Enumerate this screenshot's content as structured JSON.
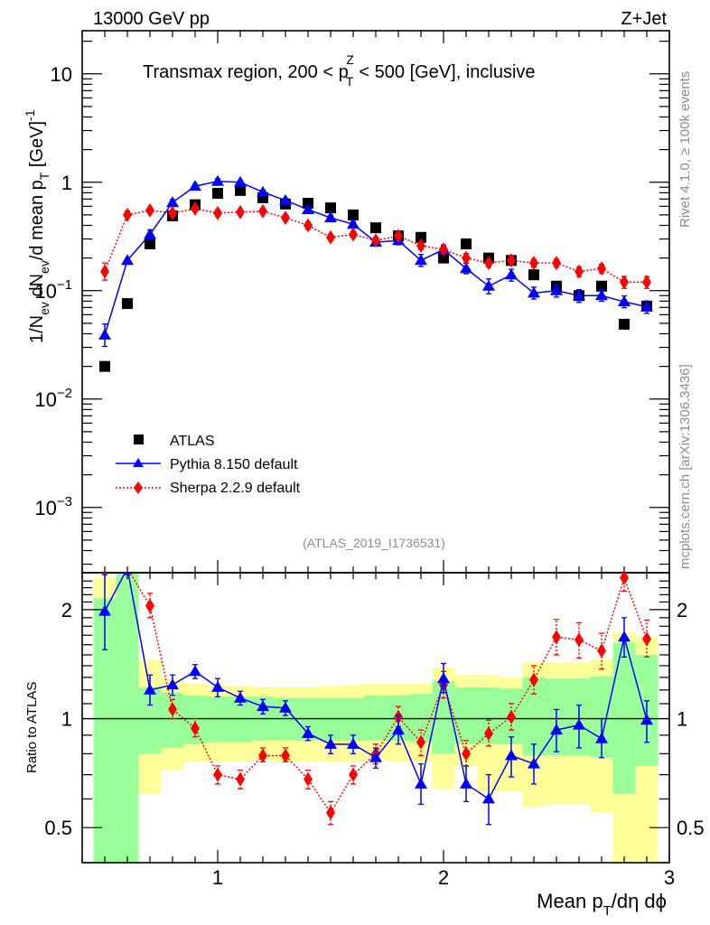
{
  "chart_data": {
    "type": "scatter",
    "top_left_label": "13000 GeV pp",
    "top_right_label": "Z+Jet",
    "title": "Transmax region, 200 < p_T^Z < 500 [GeV], inclusive",
    "title_parts": {
      "pre": "Transmax region, 200 < p",
      "sub": "T",
      "sup": "Z",
      "post": " < 500 [GeV], inclusive"
    },
    "ylabel": "1/N_ev dN_ev/d mean p_T [GeV]^-1",
    "ylabel_parts": {
      "a": "1/N",
      "a_sub": "ev",
      "b": " dN",
      "b_sub": "ev",
      "c": "/d mean p",
      "c_sub": "T",
      "d": " [GeV]",
      "d_sup": "-1"
    },
    "ratio_ylabel": "Ratio to ATLAS",
    "xlabel": "Mean p_T/dη dϕ",
    "xlabel_parts": {
      "a": "Mean p",
      "a_sub": "T",
      "b": "/dη dϕ"
    },
    "xlim": [
      0.4,
      3.0
    ],
    "ylim": [
      0.00025,
      25
    ],
    "yscale": "log",
    "ratio_ylim": [
      0.4,
      2.53
    ],
    "ratio_yscale": "log",
    "x_ticks": [
      {
        "v": 1,
        "label": "1"
      },
      {
        "v": 2,
        "label": "2"
      },
      {
        "v": 3,
        "label": "3"
      }
    ],
    "y_ticks": [
      {
        "v": 10,
        "label": "10",
        "base": "10",
        "exp": ""
      },
      {
        "v": 1,
        "label": "1",
        "base": "1",
        "exp": ""
      },
      {
        "v": 0.1,
        "label": "10^-1",
        "base": "10",
        "exp": "−1"
      },
      {
        "v": 0.01,
        "label": "10^-2",
        "base": "10",
        "exp": "−2"
      },
      {
        "v": 0.001,
        "label": "10^-3",
        "base": "10",
        "exp": "−3"
      }
    ],
    "ratio_y_ticks": [
      {
        "v": 2,
        "label": "2"
      },
      {
        "v": 1,
        "label": "1"
      },
      {
        "v": 0.5,
        "label": "0.5"
      }
    ],
    "side_text_top": "Rivet 4.1.0, ≥ 100k events",
    "side_text_bottom": "mcplots.cern.ch [arXiv:1306.3436]",
    "analysis_id": "(ATLAS_2019_I1736531)",
    "legend_position": "lower-left",
    "legend": [
      {
        "name": "ATLAS",
        "marker": "square",
        "color": "#000000"
      },
      {
        "name": "Pythia 8.150 default",
        "marker": "triangle",
        "color": "#0000ff",
        "line": "solid"
      },
      {
        "name": "Sherpa 2.2.9 default",
        "marker": "diamond",
        "color": "#ff0000",
        "line": "dotted"
      }
    ],
    "bin_edges": [
      0.45,
      0.55,
      0.65,
      0.75,
      0.85,
      0.95,
      1.05,
      1.15,
      1.25,
      1.35,
      1.45,
      1.55,
      1.65,
      1.75,
      1.85,
      1.95,
      2.05,
      2.15,
      2.25,
      2.35,
      2.45,
      2.55,
      2.65,
      2.75,
      2.85,
      2.95
    ],
    "x": [
      0.5,
      0.6,
      0.7,
      0.8,
      0.9,
      1.0,
      1.1,
      1.2,
      1.3,
      1.4,
      1.5,
      1.6,
      1.7,
      1.8,
      1.9,
      2.0,
      2.1,
      2.2,
      2.3,
      2.4,
      2.5,
      2.6,
      2.7,
      2.8,
      2.9
    ],
    "series": [
      {
        "name": "ATLAS",
        "values": [
          0.02,
          0.076,
          0.27,
          0.49,
          0.62,
          0.79,
          0.84,
          0.72,
          0.63,
          0.64,
          0.58,
          0.5,
          0.38,
          0.32,
          0.31,
          0.2,
          0.27,
          0.2,
          0.19,
          0.14,
          0.11,
          0.09,
          0.11,
          0.049,
          0.072
        ],
        "band_inner": [
          [
            0.4,
            2.15
          ],
          [
            0.4,
            2.53
          ],
          [
            0.8,
            1.22
          ],
          [
            0.83,
            1.18
          ],
          [
            0.85,
            1.16
          ],
          [
            0.86,
            1.15
          ],
          [
            0.86,
            1.15
          ],
          [
            0.87,
            1.15
          ],
          [
            0.87,
            1.14
          ],
          [
            0.87,
            1.14
          ],
          [
            0.87,
            1.14
          ],
          [
            0.87,
            1.14
          ],
          [
            0.87,
            1.16
          ],
          [
            0.87,
            1.16
          ],
          [
            0.86,
            1.17
          ],
          [
            0.8,
            1.27
          ],
          [
            0.85,
            1.22
          ],
          [
            0.85,
            1.22
          ],
          [
            0.85,
            1.21
          ],
          [
            0.79,
            1.3
          ],
          [
            0.79,
            1.29
          ],
          [
            0.79,
            1.29
          ],
          [
            0.78,
            1.31
          ],
          [
            0.62,
            1.62
          ],
          [
            0.74,
            1.5
          ]
        ],
        "band_outer": [
          [
            0.4,
            2.45
          ],
          [
            0.4,
            2.53
          ],
          [
            0.62,
            1.45
          ],
          [
            0.72,
            1.29
          ],
          [
            0.76,
            1.25
          ],
          [
            0.76,
            1.23
          ],
          [
            0.76,
            1.23
          ],
          [
            0.77,
            1.22
          ],
          [
            0.76,
            1.22
          ],
          [
            0.76,
            1.22
          ],
          [
            0.76,
            1.23
          ],
          [
            0.76,
            1.24
          ],
          [
            0.77,
            1.25
          ],
          [
            0.76,
            1.25
          ],
          [
            0.76,
            1.25
          ],
          [
            0.64,
            1.38
          ],
          [
            0.74,
            1.32
          ],
          [
            0.63,
            1.32
          ],
          [
            0.63,
            1.3
          ],
          [
            0.57,
            1.43
          ],
          [
            0.58,
            1.43
          ],
          [
            0.58,
            1.43
          ],
          [
            0.55,
            1.46
          ],
          [
            0.4,
            1.73
          ],
          [
            0.4,
            1.68
          ]
        ]
      },
      {
        "name": "Pythia 8.150 default",
        "values": [
          0.039,
          0.19,
          0.33,
          0.65,
          0.92,
          1.02,
          1.0,
          0.81,
          0.68,
          0.56,
          0.47,
          0.41,
          0.28,
          0.29,
          0.19,
          0.24,
          0.16,
          0.11,
          0.14,
          0.095,
          0.1,
          0.09,
          0.09,
          0.079,
          0.071
        ],
        "ratio": [
          1.98,
          2.6,
          1.2,
          1.24,
          1.35,
          1.22,
          1.14,
          1.08,
          1.07,
          0.91,
          0.85,
          0.85,
          0.78,
          0.93,
          0.66,
          1.29,
          0.66,
          0.6,
          0.79,
          0.75,
          0.93,
          0.96,
          0.88,
          1.68,
          0.99
        ],
        "ratio_err": [
          [
            1.55,
            2.5
          ],
          [
            2.5,
            2.6
          ],
          [
            1.09,
            1.32
          ],
          [
            1.16,
            1.32
          ],
          [
            1.29,
            1.41
          ],
          [
            1.15,
            1.29
          ],
          [
            1.09,
            1.19
          ],
          [
            1.03,
            1.13
          ],
          [
            1.02,
            1.12
          ],
          [
            0.87,
            0.95
          ],
          [
            0.8,
            0.9
          ],
          [
            0.8,
            0.9
          ],
          [
            0.73,
            0.83
          ],
          [
            0.85,
            1.02
          ],
          [
            0.58,
            0.75
          ],
          [
            1.18,
            1.42
          ],
          [
            0.59,
            0.74
          ],
          [
            0.51,
            0.7
          ],
          [
            0.69,
            0.89
          ],
          [
            0.66,
            0.85
          ],
          [
            0.81,
            1.06
          ],
          [
            0.83,
            1.09
          ],
          [
            0.78,
            1.0
          ],
          [
            1.48,
            1.9
          ],
          [
            0.86,
            1.12
          ]
        ]
      },
      {
        "name": "Sherpa 2.2.9 default",
        "values": [
          0.15,
          0.5,
          0.55,
          0.52,
          0.57,
          0.52,
          0.53,
          0.54,
          0.47,
          0.4,
          0.31,
          0.33,
          0.29,
          0.32,
          0.26,
          0.24,
          0.2,
          0.18,
          0.19,
          0.18,
          0.18,
          0.15,
          0.16,
          0.12,
          0.12
        ],
        "ratio": [
          2.6,
          2.6,
          2.05,
          1.06,
          0.94,
          0.7,
          0.68,
          0.79,
          0.79,
          0.68,
          0.55,
          0.7,
          0.8,
          1.01,
          0.86,
          1.24,
          0.8,
          0.91,
          1.01,
          1.28,
          1.68,
          1.65,
          1.54,
          2.45,
          1.66
        ],
        "ratio_err": [
          [
            2.5,
            2.6
          ],
          [
            2.5,
            2.6
          ],
          [
            1.9,
            2.22
          ],
          [
            1.0,
            1.13
          ],
          [
            0.89,
            1.0
          ],
          [
            0.66,
            0.74
          ],
          [
            0.64,
            0.72
          ],
          [
            0.76,
            0.83
          ],
          [
            0.76,
            0.83
          ],
          [
            0.64,
            0.72
          ],
          [
            0.51,
            0.59
          ],
          [
            0.66,
            0.74
          ],
          [
            0.75,
            0.85
          ],
          [
            0.95,
            1.08
          ],
          [
            0.79,
            0.93
          ],
          [
            1.14,
            1.35
          ],
          [
            0.74,
            0.87
          ],
          [
            0.84,
            0.99
          ],
          [
            0.93,
            1.1
          ],
          [
            1.17,
            1.4
          ],
          [
            1.5,
            1.88
          ],
          [
            1.47,
            1.84
          ],
          [
            1.37,
            1.72
          ],
          [
            2.25,
            2.53
          ],
          [
            1.48,
            1.87
          ]
        ],
        "main_err": [
          [
            0.125,
            0.18
          ],
          [
            0.47,
            0.54
          ],
          [
            0.52,
            0.58
          ],
          [
            0.49,
            0.55
          ],
          [
            0.54,
            0.6
          ],
          [
            0.49,
            0.55
          ],
          [
            0.5,
            0.56
          ],
          [
            0.51,
            0.57
          ],
          [
            0.44,
            0.5
          ],
          [
            0.37,
            0.43
          ],
          [
            0.29,
            0.33
          ],
          [
            0.31,
            0.35
          ],
          [
            0.27,
            0.31
          ],
          [
            0.3,
            0.34
          ],
          [
            0.24,
            0.28
          ],
          [
            0.22,
            0.26
          ],
          [
            0.18,
            0.22
          ],
          [
            0.165,
            0.195
          ],
          [
            0.175,
            0.205
          ],
          [
            0.165,
            0.195
          ],
          [
            0.165,
            0.195
          ],
          [
            0.135,
            0.165
          ],
          [
            0.145,
            0.175
          ],
          [
            0.105,
            0.135
          ],
          [
            0.105,
            0.135
          ]
        ]
      }
    ]
  }
}
